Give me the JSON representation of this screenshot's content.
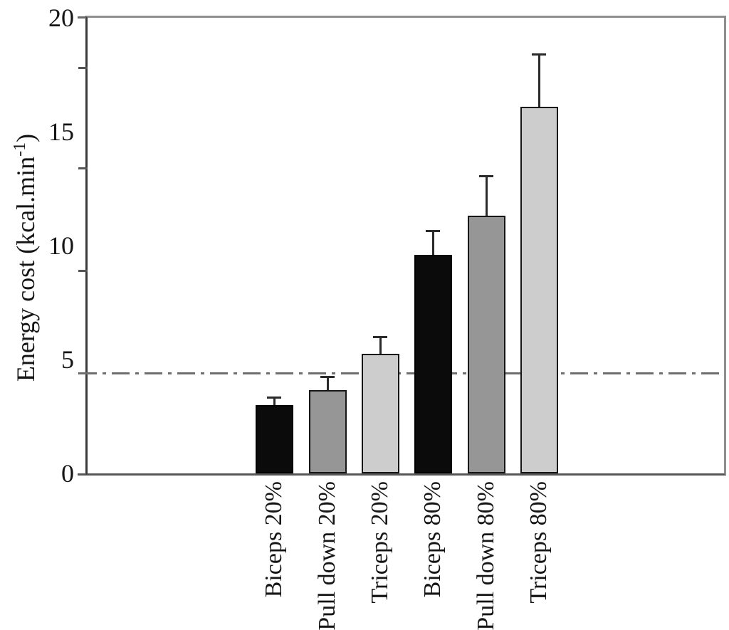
{
  "chart_data": {
    "type": "bar",
    "title": "",
    "ylabel_main": "Energy cost (kcal.min",
    "ylabel_sup": "-1",
    "ylabel_close": ")",
    "categories": [
      "Biceps 20%",
      "Pull down 20%",
      "Triceps 20%",
      "Biceps 80%",
      "Pull down 80%",
      "Triceps 80%"
    ],
    "values": [
      3.0,
      3.65,
      5.25,
      9.6,
      11.3,
      16.1
    ],
    "error_upper": [
      0.35,
      0.6,
      0.75,
      1.05,
      1.75,
      2.3
    ],
    "bar_colors": [
      "#0b0b0b",
      "#969696",
      "#cdcdcd",
      "#0b0b0b",
      "#969696",
      "#cdcdcd"
    ],
    "ylim": [
      0,
      20
    ],
    "y_major_ticks": [
      0,
      5,
      10,
      15,
      20
    ],
    "y_minor_ticks": [
      4.4,
      8.9,
      13.4,
      17.8
    ],
    "reference_line_y": 4.4,
    "grid": "off",
    "legend": "none",
    "colors": {
      "bar_black": "#0b0b0b",
      "bar_gray": "#969696",
      "bar_lightgray": "#cdcdcd",
      "frame": "#8e8e8e",
      "reference_line": "#6f6f6f",
      "text": "#151515"
    }
  }
}
